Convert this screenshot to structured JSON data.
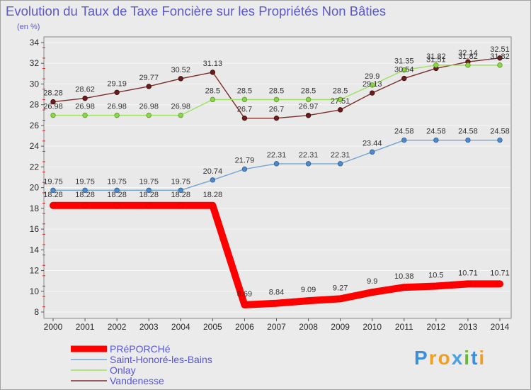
{
  "chart_data": {
    "type": "line",
    "title": "Evolution du Taux de Taxe Foncière sur les Propriétés Non Bâties",
    "subtitle": "(en %)",
    "categories": [
      "2000",
      "2001",
      "2002",
      "2003",
      "2004",
      "2005",
      "2006",
      "2007",
      "2008",
      "2009",
      "2010",
      "2011",
      "2012",
      "2013",
      "2014"
    ],
    "ylim": [
      8,
      34
    ],
    "yticks": [
      8,
      10,
      12,
      14,
      16,
      18,
      20,
      22,
      24,
      26,
      28,
      30,
      32,
      34
    ],
    "grid": true,
    "data_labels": true,
    "legend_position": "bottom-left",
    "series": [
      {
        "name": "PRéPORCHé",
        "color": "#ff0000",
        "marker_color": "#ff0000",
        "marker_edge": "#e00000",
        "emphasis": true,
        "values": [
          18.28,
          18.28,
          18.28,
          18.28,
          18.28,
          18.28,
          8.69,
          8.84,
          9.09,
          9.27,
          9.9,
          10.38,
          10.5,
          10.71,
          10.71
        ]
      },
      {
        "name": "Saint-Honoré-les-Bains",
        "color": "#74a3d4",
        "marker_color": "#4f89c9",
        "marker_edge": "#2d5f96",
        "emphasis": false,
        "values": [
          19.75,
          19.75,
          19.75,
          19.75,
          19.75,
          20.74,
          21.79,
          22.31,
          22.31,
          22.31,
          23.44,
          24.58,
          24.58,
          24.58,
          24.58
        ]
      },
      {
        "name": "Onlay",
        "color": "#9de05e",
        "marker_color": "#8fd44c",
        "marker_edge": "#5a9e22",
        "emphasis": false,
        "values": [
          26.98,
          26.98,
          26.98,
          26.98,
          26.98,
          28.5,
          28.5,
          28.5,
          28.5,
          28.5,
          29.9,
          31.35,
          31.82,
          31.82,
          31.82
        ]
      },
      {
        "name": "Vandenesse",
        "color": "#7b2d2d",
        "marker_color": "#6b1c1c",
        "marker_edge": "#3d0b0b",
        "emphasis": false,
        "values": [
          28.28,
          28.62,
          29.19,
          29.77,
          30.52,
          31.13,
          26.7,
          26.7,
          26.97,
          27.51,
          29.13,
          30.54,
          31.51,
          32.14,
          32.51
        ]
      }
    ]
  },
  "logo": {
    "text": "Proxiti",
    "letter_colors": [
      "#3d8edb",
      "#f0a020",
      "#f0a020",
      "#4aa0e0",
      "#66bb33",
      "#3d8edb",
      "#f0a020"
    ]
  },
  "colors": {
    "title": "#5a58cc",
    "legend_text": "#5656d8",
    "background": "#ebebeb",
    "plot_background": "#e9e9e9",
    "plot_border": "#8a8a8a",
    "gridline": "#f7f7f7",
    "minor_tick": "#e02020"
  }
}
